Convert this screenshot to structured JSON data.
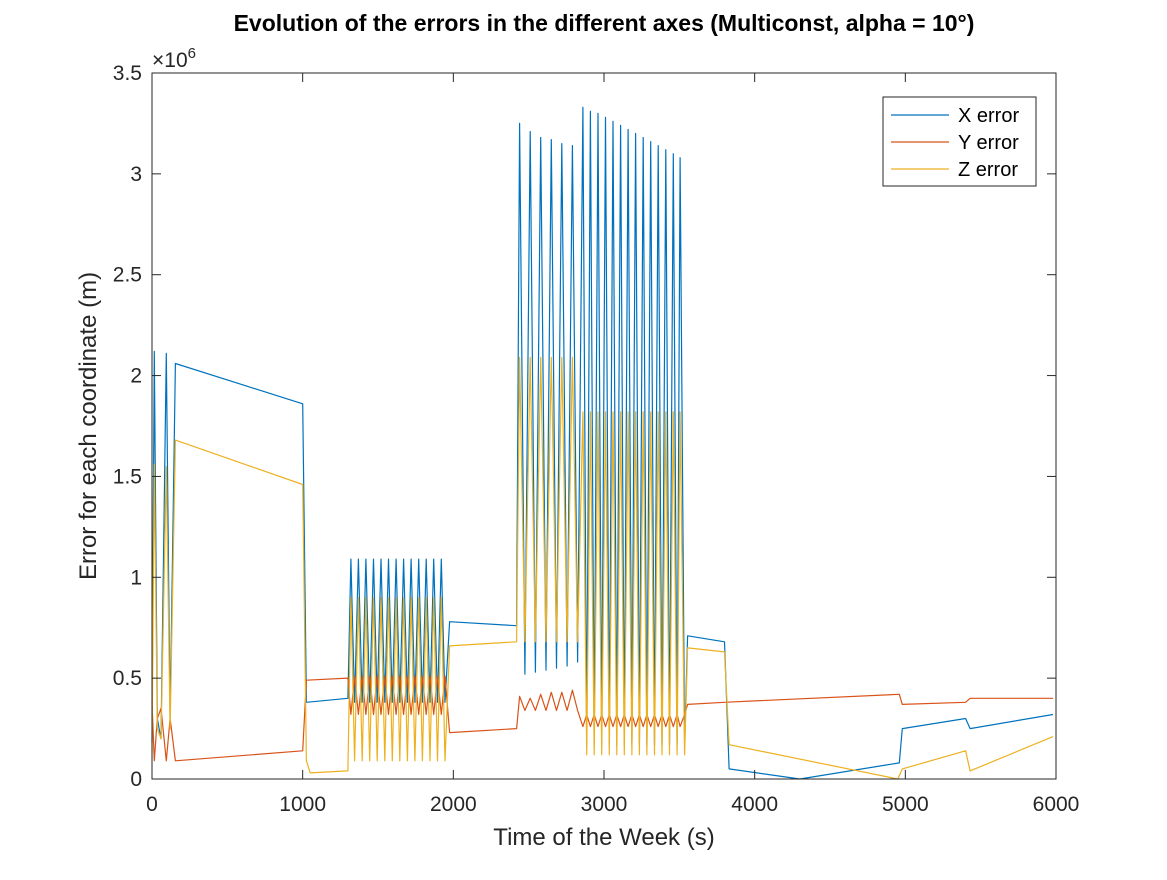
{
  "chart_data": {
    "type": "line",
    "title": "Evolution of the errors in the different axes (Multiconst, alpha = 10°)",
    "xlabel": "Time of the Week (s)",
    "ylabel": "Error for each coordinate (m)",
    "xlim": [
      0,
      6000
    ],
    "ylim": [
      0,
      3500000
    ],
    "xticks": [
      0,
      1000,
      2000,
      3000,
      4000,
      5000,
      6000
    ],
    "xtick_labels": [
      "0",
      "1000",
      "2000",
      "3000",
      "4000",
      "5000",
      "6000"
    ],
    "yticks": [
      0,
      500000,
      1000000,
      1500000,
      2000000,
      2500000,
      3000000,
      3500000
    ],
    "ytick_labels": [
      "0",
      "0.5",
      "1",
      "1.5",
      "2",
      "2.5",
      "3",
      "3.5"
    ],
    "y_exponent_base": "×10",
    "y_exponent_power": "6",
    "grid": false,
    "legend_position": "top-right",
    "series": [
      {
        "name": "X error",
        "color": "#0072BD",
        "points": [
          [
            0,
            180000
          ],
          [
            15,
            2120000
          ],
          [
            35,
            300000
          ],
          [
            60,
            200000
          ],
          [
            95,
            2110000
          ],
          [
            120,
            300000
          ],
          [
            155,
            2060000
          ],
          [
            1000,
            1860000
          ],
          [
            1025,
            380000
          ],
          [
            1300,
            400000
          ],
          [
            1320,
            1090000
          ],
          [
            1345,
            380000
          ],
          [
            1370,
            1090000
          ],
          [
            1395,
            380000
          ],
          [
            1420,
            1090000
          ],
          [
            1445,
            380000
          ],
          [
            1470,
            1090000
          ],
          [
            1495,
            380000
          ],
          [
            1520,
            1090000
          ],
          [
            1545,
            380000
          ],
          [
            1570,
            1090000
          ],
          [
            1595,
            380000
          ],
          [
            1620,
            1090000
          ],
          [
            1645,
            380000
          ],
          [
            1670,
            1090000
          ],
          [
            1695,
            380000
          ],
          [
            1720,
            1090000
          ],
          [
            1745,
            380000
          ],
          [
            1770,
            1090000
          ],
          [
            1795,
            380000
          ],
          [
            1820,
            1090000
          ],
          [
            1845,
            380000
          ],
          [
            1870,
            1090000
          ],
          [
            1895,
            380000
          ],
          [
            1920,
            1090000
          ],
          [
            1945,
            380000
          ],
          [
            1975,
            780000
          ],
          [
            2420,
            760000
          ],
          [
            2440,
            3250000
          ],
          [
            2475,
            520000
          ],
          [
            2510,
            3210000
          ],
          [
            2545,
            530000
          ],
          [
            2580,
            3180000
          ],
          [
            2615,
            540000
          ],
          [
            2650,
            3170000
          ],
          [
            2685,
            550000
          ],
          [
            2720,
            3150000
          ],
          [
            2755,
            560000
          ],
          [
            2790,
            3140000
          ],
          [
            2825,
            580000
          ],
          [
            2860,
            3330000
          ],
          [
            2885,
            170000
          ],
          [
            2910,
            3310000
          ],
          [
            2935,
            170000
          ],
          [
            2960,
            3300000
          ],
          [
            2985,
            170000
          ],
          [
            3010,
            3280000
          ],
          [
            3035,
            170000
          ],
          [
            3060,
            3260000
          ],
          [
            3085,
            170000
          ],
          [
            3110,
            3240000
          ],
          [
            3135,
            170000
          ],
          [
            3160,
            3220000
          ],
          [
            3185,
            170000
          ],
          [
            3210,
            3200000
          ],
          [
            3235,
            170000
          ],
          [
            3260,
            3180000
          ],
          [
            3285,
            170000
          ],
          [
            3310,
            3160000
          ],
          [
            3335,
            170000
          ],
          [
            3360,
            3140000
          ],
          [
            3385,
            170000
          ],
          [
            3410,
            3120000
          ],
          [
            3435,
            170000
          ],
          [
            3460,
            3100000
          ],
          [
            3485,
            170000
          ],
          [
            3505,
            3080000
          ],
          [
            3535,
            170000
          ],
          [
            3555,
            710000
          ],
          [
            3800,
            680000
          ],
          [
            3830,
            50000
          ],
          [
            4300,
            0
          ],
          [
            4960,
            80000
          ],
          [
            4980,
            250000
          ],
          [
            5400,
            300000
          ],
          [
            5430,
            250000
          ],
          [
            5980,
            320000
          ]
        ]
      },
      {
        "name": "Y error",
        "color": "#D95319",
        "points": [
          [
            0,
            380000
          ],
          [
            15,
            90000
          ],
          [
            35,
            300000
          ],
          [
            60,
            350000
          ],
          [
            95,
            90000
          ],
          [
            120,
            300000
          ],
          [
            155,
            90000
          ],
          [
            1000,
            140000
          ],
          [
            1025,
            490000
          ],
          [
            1300,
            500000
          ],
          [
            1320,
            320000
          ],
          [
            1345,
            510000
          ],
          [
            1370,
            320000
          ],
          [
            1395,
            510000
          ],
          [
            1420,
            320000
          ],
          [
            1445,
            510000
          ],
          [
            1470,
            320000
          ],
          [
            1495,
            510000
          ],
          [
            1520,
            320000
          ],
          [
            1545,
            510000
          ],
          [
            1570,
            320000
          ],
          [
            1595,
            510000
          ],
          [
            1620,
            320000
          ],
          [
            1645,
            510000
          ],
          [
            1670,
            320000
          ],
          [
            1695,
            510000
          ],
          [
            1720,
            320000
          ],
          [
            1745,
            510000
          ],
          [
            1770,
            320000
          ],
          [
            1795,
            510000
          ],
          [
            1820,
            320000
          ],
          [
            1845,
            510000
          ],
          [
            1870,
            320000
          ],
          [
            1895,
            510000
          ],
          [
            1920,
            320000
          ],
          [
            1945,
            510000
          ],
          [
            1975,
            230000
          ],
          [
            2420,
            250000
          ],
          [
            2440,
            410000
          ],
          [
            2475,
            340000
          ],
          [
            2510,
            400000
          ],
          [
            2545,
            340000
          ],
          [
            2580,
            420000
          ],
          [
            2615,
            340000
          ],
          [
            2650,
            430000
          ],
          [
            2685,
            340000
          ],
          [
            2720,
            430000
          ],
          [
            2755,
            340000
          ],
          [
            2790,
            440000
          ],
          [
            2825,
            340000
          ],
          [
            2860,
            260000
          ],
          [
            2885,
            320000
          ],
          [
            2910,
            260000
          ],
          [
            2935,
            320000
          ],
          [
            2960,
            260000
          ],
          [
            2985,
            320000
          ],
          [
            3010,
            260000
          ],
          [
            3035,
            320000
          ],
          [
            3060,
            260000
          ],
          [
            3085,
            320000
          ],
          [
            3110,
            260000
          ],
          [
            3135,
            320000
          ],
          [
            3160,
            260000
          ],
          [
            3185,
            320000
          ],
          [
            3210,
            260000
          ],
          [
            3235,
            320000
          ],
          [
            3260,
            260000
          ],
          [
            3285,
            320000
          ],
          [
            3310,
            260000
          ],
          [
            3335,
            320000
          ],
          [
            3360,
            260000
          ],
          [
            3385,
            320000
          ],
          [
            3410,
            260000
          ],
          [
            3435,
            320000
          ],
          [
            3460,
            260000
          ],
          [
            3485,
            320000
          ],
          [
            3505,
            260000
          ],
          [
            3535,
            320000
          ],
          [
            3555,
            370000
          ],
          [
            3800,
            380000
          ],
          [
            4960,
            420000
          ],
          [
            4980,
            370000
          ],
          [
            5400,
            380000
          ],
          [
            5430,
            400000
          ],
          [
            5980,
            400000
          ]
        ]
      },
      {
        "name": "Z error",
        "color": "#EDB120",
        "points": [
          [
            0,
            130000
          ],
          [
            15,
            1560000
          ],
          [
            35,
            250000
          ],
          [
            60,
            200000
          ],
          [
            95,
            1550000
          ],
          [
            120,
            250000
          ],
          [
            155,
            1680000
          ],
          [
            1000,
            1460000
          ],
          [
            1025,
            90000
          ],
          [
            1050,
            30000
          ],
          [
            1300,
            40000
          ],
          [
            1320,
            900000
          ],
          [
            1345,
            90000
          ],
          [
            1370,
            900000
          ],
          [
            1395,
            90000
          ],
          [
            1420,
            900000
          ],
          [
            1445,
            90000
          ],
          [
            1470,
            900000
          ],
          [
            1495,
            90000
          ],
          [
            1520,
            900000
          ],
          [
            1545,
            90000
          ],
          [
            1570,
            900000
          ],
          [
            1595,
            90000
          ],
          [
            1620,
            900000
          ],
          [
            1645,
            90000
          ],
          [
            1670,
            900000
          ],
          [
            1695,
            90000
          ],
          [
            1720,
            900000
          ],
          [
            1745,
            90000
          ],
          [
            1770,
            900000
          ],
          [
            1795,
            90000
          ],
          [
            1820,
            900000
          ],
          [
            1845,
            90000
          ],
          [
            1870,
            900000
          ],
          [
            1895,
            90000
          ],
          [
            1920,
            900000
          ],
          [
            1945,
            90000
          ],
          [
            1975,
            660000
          ],
          [
            2420,
            680000
          ],
          [
            2440,
            2090000
          ],
          [
            2475,
            680000
          ],
          [
            2510,
            2090000
          ],
          [
            2545,
            680000
          ],
          [
            2580,
            2090000
          ],
          [
            2615,
            680000
          ],
          [
            2650,
            2090000
          ],
          [
            2685,
            680000
          ],
          [
            2720,
            2090000
          ],
          [
            2755,
            680000
          ],
          [
            2790,
            2090000
          ],
          [
            2825,
            680000
          ],
          [
            2860,
            1820000
          ],
          [
            2885,
            120000
          ],
          [
            2910,
            1820000
          ],
          [
            2935,
            120000
          ],
          [
            2960,
            1820000
          ],
          [
            2985,
            120000
          ],
          [
            3010,
            1820000
          ],
          [
            3035,
            120000
          ],
          [
            3060,
            1820000
          ],
          [
            3085,
            120000
          ],
          [
            3110,
            1820000
          ],
          [
            3135,
            120000
          ],
          [
            3160,
            1820000
          ],
          [
            3185,
            120000
          ],
          [
            3210,
            1820000
          ],
          [
            3235,
            120000
          ],
          [
            3260,
            1820000
          ],
          [
            3285,
            120000
          ],
          [
            3310,
            1820000
          ],
          [
            3335,
            120000
          ],
          [
            3360,
            1820000
          ],
          [
            3385,
            120000
          ],
          [
            3410,
            1820000
          ],
          [
            3435,
            120000
          ],
          [
            3460,
            1820000
          ],
          [
            3485,
            120000
          ],
          [
            3505,
            1820000
          ],
          [
            3535,
            120000
          ],
          [
            3555,
            650000
          ],
          [
            3800,
            630000
          ],
          [
            3830,
            170000
          ],
          [
            4950,
            0
          ],
          [
            4980,
            50000
          ],
          [
            5400,
            140000
          ],
          [
            5430,
            40000
          ],
          [
            5980,
            210000
          ]
        ]
      }
    ]
  }
}
